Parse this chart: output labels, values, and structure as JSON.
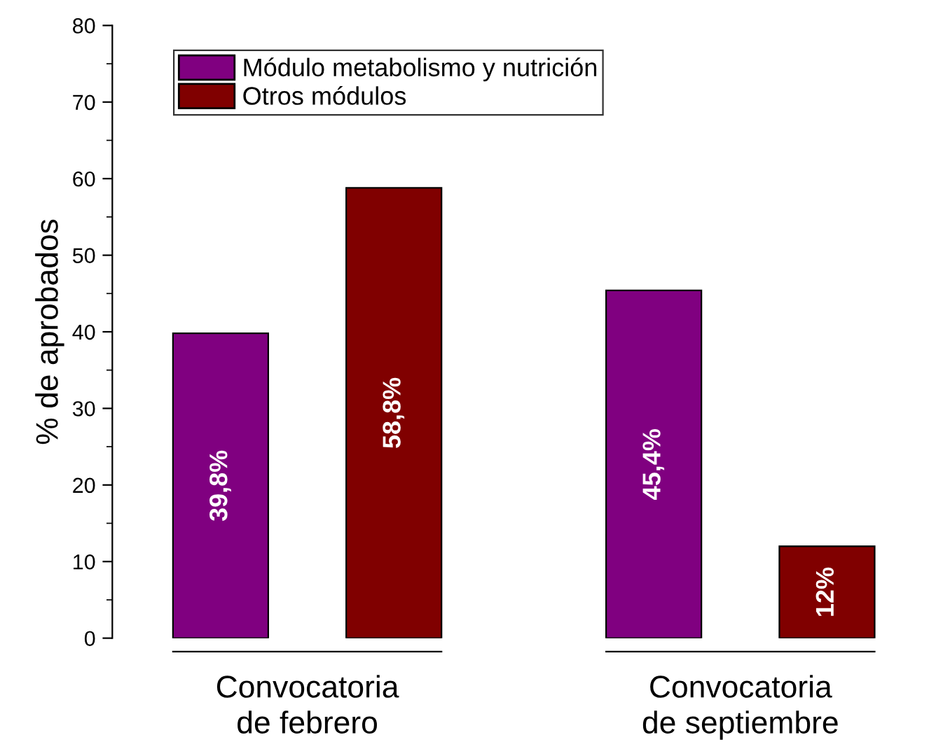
{
  "chart_data": {
    "type": "bar",
    "ylabel": "% de aprobados",
    "categories": [
      "Convocatoria\nde febrero",
      "Convocatoria\nde septiembre"
    ],
    "series": [
      {
        "name": "Módulo metabolismo y nutrición",
        "color": "#800080",
        "values": [
          39.8,
          45.4
        ],
        "value_labels": [
          "39,8%",
          "45,4%"
        ]
      },
      {
        "name": "Otros módulos",
        "color": "#800000",
        "values": [
          58.8,
          12
        ],
        "value_labels": [
          "58,8%",
          "12%"
        ]
      }
    ],
    "ylim": [
      0,
      80
    ],
    "yticks": [
      0,
      10,
      20,
      30,
      40,
      50,
      60,
      70,
      80
    ],
    "grid": false,
    "legend": "top left"
  }
}
